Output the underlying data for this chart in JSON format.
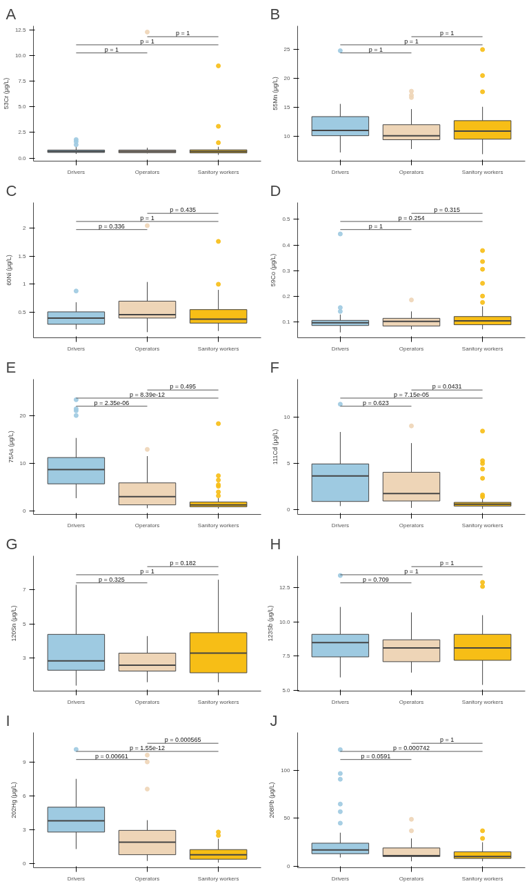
{
  "chart_data": [
    {
      "type": "box",
      "title": "A",
      "ylabel": "53Cr (μg/L)",
      "categories": [
        "Drivers",
        "Operators",
        "Sanitory workers"
      ],
      "colors": [
        "#9ecae1",
        "#eed5b7",
        "#f7be16"
      ],
      "ylim": [
        -0.3,
        12.9
      ],
      "yticks": [
        {
          "value": 0,
          "label": "0.0"
        },
        2.5,
        {
          "value": 5,
          "label": "5.0"
        },
        7.5,
        {
          "value": 10,
          "label": "10.0"
        },
        12.5
      ],
      "grid": false,
      "legend": false,
      "boxes": [
        {
          "low": 0.4,
          "q1": 0.55,
          "median": 0.65,
          "q3": 0.78,
          "high": 1.1,
          "outliers": [
            1.3,
            1.6,
            1.8
          ]
        },
        {
          "low": 0.45,
          "q1": 0.52,
          "median": 0.65,
          "q3": 0.78,
          "high": 1.0,
          "outliers": [
            12.3
          ]
        },
        {
          "low": 0.3,
          "q1": 0.5,
          "median": 0.65,
          "q3": 0.8,
          "high": 1.1,
          "outliers": [
            1.5,
            3.1,
            9.0
          ]
        }
      ],
      "annotations": [
        "p = 1",
        "p = 1",
        "p = 1"
      ]
    },
    {
      "type": "box",
      "title": "B",
      "ylabel": "55Mn (μg/L)",
      "categories": [
        "Drivers",
        "Operators",
        "Sanitory workers"
      ],
      "colors": [
        "#9ecae1",
        "#eed5b7",
        "#f7be16"
      ],
      "ylim": [
        5.7,
        29.1
      ],
      "yticks": [
        10,
        15,
        20,
        25
      ],
      "grid": false,
      "legend": false,
      "boxes": [
        {
          "low": 7.2,
          "q1": 10.1,
          "median": 11.0,
          "q3": 13.4,
          "high": 15.6,
          "outliers": [
            24.8
          ]
        },
        {
          "low": 7.8,
          "q1": 9.4,
          "median": 10.1,
          "q3": 12.0,
          "high": 14.7,
          "outliers": [
            16.7,
            17.1,
            17.8
          ]
        },
        {
          "low": 6.9,
          "q1": 9.5,
          "median": 10.9,
          "q3": 12.7,
          "high": 15.1,
          "outliers": [
            17.7,
            20.5,
            25.0
          ]
        }
      ],
      "annotations": [
        "p = 1",
        "p = 1",
        "p = 1"
      ]
    },
    {
      "type": "box",
      "title": "C",
      "ylabel": "60Ni (μg/L)",
      "categories": [
        "Drivers",
        "Operators",
        "Sanitory workers"
      ],
      "colors": [
        "#9ecae1",
        "#eed5b7",
        "#f7be16"
      ],
      "ylim": [
        0.05,
        2.45
      ],
      "yticks": [
        0.5,
        1.0,
        1.5,
        2.0
      ],
      "grid": false,
      "legend": false,
      "boxes": [
        {
          "low": 0.2,
          "q1": 0.29,
          "median": 0.4,
          "q3": 0.51,
          "high": 0.68,
          "outliers": [
            0.88
          ]
        },
        {
          "low": 0.15,
          "q1": 0.4,
          "median": 0.46,
          "q3": 0.7,
          "high": 1.04,
          "outliers": [
            2.04
          ]
        },
        {
          "low": 0.17,
          "q1": 0.31,
          "median": 0.38,
          "q3": 0.55,
          "high": 0.9,
          "outliers": [
            1.0,
            1.76
          ]
        }
      ],
      "annotations": [
        "p = 0.336",
        "p = 1",
        "p = 0.435"
      ]
    },
    {
      "type": "box",
      "title": "D",
      "ylabel": "59Co (μg/L)",
      "categories": [
        "Drivers",
        "Operators",
        "Sanitory workers"
      ],
      "colors": [
        "#9ecae1",
        "#eed5b7",
        "#f7be16"
      ],
      "ylim": [
        0.037,
        0.566
      ],
      "yticks": [
        0.1,
        0.2,
        0.3,
        0.4,
        0.5
      ],
      "grid": false,
      "legend": false,
      "boxes": [
        {
          "low": 0.058,
          "q1": 0.085,
          "median": 0.096,
          "q3": 0.105,
          "high": 0.128,
          "outliers": [
            0.14,
            0.155,
            0.443
          ]
        },
        {
          "low": 0.07,
          "q1": 0.083,
          "median": 0.101,
          "q3": 0.113,
          "high": 0.14,
          "outliers": [
            0.185
          ]
        },
        {
          "low": 0.07,
          "q1": 0.088,
          "median": 0.103,
          "q3": 0.12,
          "high": 0.16,
          "outliers": [
            0.175,
            0.2,
            0.25,
            0.305,
            0.335,
            0.378
          ]
        }
      ],
      "annotations": [
        "p = 1",
        "p = 0.254",
        "p = 0.315"
      ]
    },
    {
      "type": "box",
      "title": "E",
      "ylabel": "75As (μg/L)",
      "categories": [
        "Drivers",
        "Operators",
        "Sanitory workers"
      ],
      "colors": [
        "#9ecae1",
        "#eed5b7",
        "#f7be16"
      ],
      "ylim": [
        -0.7,
        27.6
      ],
      "yticks": [
        0,
        10,
        20
      ],
      "grid": false,
      "legend": false,
      "boxes": [
        {
          "low": 2.7,
          "q1": 5.7,
          "median": 8.7,
          "q3": 11.2,
          "high": 15.3,
          "outliers": [
            20.0,
            21.0,
            21.4,
            23.3
          ]
        },
        {
          "low": 0.6,
          "q1": 1.3,
          "median": 3.0,
          "q3": 5.9,
          "high": 11.5,
          "outliers": [
            12.9
          ]
        },
        {
          "low": 0.5,
          "q1": 0.9,
          "median": 1.3,
          "q3": 1.9,
          "high": 2.7,
          "outliers": [
            3.2,
            4.0,
            5.2,
            5.5,
            6.5,
            7.4,
            18.3
          ]
        }
      ],
      "annotations": [
        "p = 2.35e-06",
        "p = 8.39e-12",
        "p = 0.495"
      ]
    },
    {
      "type": "box",
      "title": "F",
      "ylabel": "111Cd (μg/L)",
      "categories": [
        "Drivers",
        "Operators",
        "Sanitory workers"
      ],
      "colors": [
        "#9ecae1",
        "#eed5b7",
        "#f7be16"
      ],
      "ylim": [
        -0.5,
        14.1
      ],
      "yticks": [
        0,
        5,
        10
      ],
      "grid": false,
      "legend": false,
      "boxes": [
        {
          "low": 0.4,
          "q1": 0.9,
          "median": 3.65,
          "q3": 4.95,
          "high": 8.4,
          "outliers": [
            11.4
          ]
        },
        {
          "low": 0.2,
          "q1": 0.95,
          "median": 1.75,
          "q3": 4.05,
          "high": 7.2,
          "outliers": [
            9.05
          ]
        },
        {
          "low": 0.1,
          "q1": 0.4,
          "median": 0.6,
          "q3": 0.8,
          "high": 1.3,
          "outliers": [
            1.4,
            1.6,
            3.4,
            4.4,
            5.0,
            5.3,
            8.5
          ]
        }
      ],
      "annotations": [
        "p = 0.623",
        "p = 7.15e-05",
        "p = 0.0431"
      ]
    },
    {
      "type": "box",
      "title": "G",
      "ylabel": "120Sn (μg/L)",
      "categories": [
        "Drivers",
        "Operators",
        "Sanitory workers"
      ],
      "colors": [
        "#9ecae1",
        "#eed5b7",
        "#f7be16"
      ],
      "ylim": [
        1.08,
        9.0
      ],
      "yticks": [
        3,
        5,
        7
      ],
      "grid": false,
      "legend": false,
      "boxes": [
        {
          "low": 1.4,
          "q1": 2.3,
          "median": 2.85,
          "q3": 4.4,
          "high": 7.3
        },
        {
          "low": 1.6,
          "q1": 2.25,
          "median": 2.6,
          "q3": 3.3,
          "high": 4.3
        },
        {
          "low": 1.6,
          "q1": 2.15,
          "median": 3.3,
          "q3": 4.5,
          "high": 7.6
        }
      ],
      "annotations": [
        "p = 0.325",
        "p = 1",
        "p = 0.182"
      ]
    },
    {
      "type": "box",
      "title": "H",
      "ylabel": "123Sb (μg/L)",
      "categories": [
        "Drivers",
        "Operators",
        "Sanitory workers"
      ],
      "colors": [
        "#9ecae1",
        "#eed5b7",
        "#f7be16"
      ],
      "ylim": [
        4.95,
        14.84
      ],
      "yticks": [
        {
          "value": 5,
          "label": "5.0"
        },
        7.5,
        {
          "value": 10,
          "label": "10.0"
        },
        12.5
      ],
      "grid": false,
      "legend": false,
      "boxes": [
        {
          "low": 5.95,
          "q1": 7.45,
          "median": 8.5,
          "q3": 9.1,
          "high": 11.1,
          "outliers": [
            13.4
          ]
        },
        {
          "low": 6.3,
          "q1": 7.1,
          "median": 8.1,
          "q3": 8.7,
          "high": 10.7
        },
        {
          "low": 5.4,
          "q1": 7.2,
          "median": 8.1,
          "q3": 9.1,
          "high": 10.5,
          "outliers": [
            12.6,
            12.9
          ]
        }
      ],
      "annotations": [
        "p = 0.709",
        "p = 1",
        "p = 1"
      ]
    },
    {
      "type": "box",
      "title": "I",
      "ylabel": "202Hg (μg/L)",
      "categories": [
        "Drivers",
        "Operators",
        "Sanitory workers"
      ],
      "colors": [
        "#9ecae1",
        "#eed5b7",
        "#f7be16"
      ],
      "ylim": [
        -0.35,
        11.6
      ],
      "yticks": [
        0,
        3,
        6,
        9
      ],
      "grid": false,
      "legend": false,
      "boxes": [
        {
          "low": 1.3,
          "q1": 2.8,
          "median": 3.8,
          "q3": 5.0,
          "high": 7.5,
          "outliers": [
            10.1
          ]
        },
        {
          "low": 0.25,
          "q1": 0.8,
          "median": 1.9,
          "q3": 2.95,
          "high": 3.85,
          "outliers": [
            6.6,
            9.0,
            9.6
          ]
        },
        {
          "low": 0.1,
          "q1": 0.4,
          "median": 0.8,
          "q3": 1.25,
          "high": 2.2,
          "outliers": [
            2.5,
            2.8
          ]
        }
      ],
      "annotations": [
        "p = 0.00661",
        "p = 1.55e-12",
        "p = 0.000565"
      ]
    },
    {
      "type": "box",
      "title": "J",
      "ylabel": "208Pb (μg/L)",
      "categories": [
        "Drivers",
        "Operators",
        "Sanitory workers"
      ],
      "colors": [
        "#9ecae1",
        "#eed5b7",
        "#f7be16"
      ],
      "ylim": [
        -1.7,
        140
      ],
      "yticks": [
        0,
        50,
        100
      ],
      "grid": false,
      "legend": false,
      "boxes": [
        {
          "low": 9,
          "q1": 13,
          "median": 17,
          "q3": 24,
          "high": 35,
          "outliers": [
            45,
            57,
            65,
            91,
            97,
            122
          ]
        },
        {
          "low": 5,
          "q1": 10,
          "median": 11,
          "q3": 19,
          "high": 29,
          "outliers": [
            37,
            49
          ]
        },
        {
          "low": 5,
          "q1": 8,
          "median": 10,
          "q3": 15,
          "high": 25,
          "outliers": [
            29,
            37
          ]
        }
      ],
      "annotations": [
        "p = 0.0591",
        "p = 0.000742",
        "p = 1"
      ]
    }
  ]
}
